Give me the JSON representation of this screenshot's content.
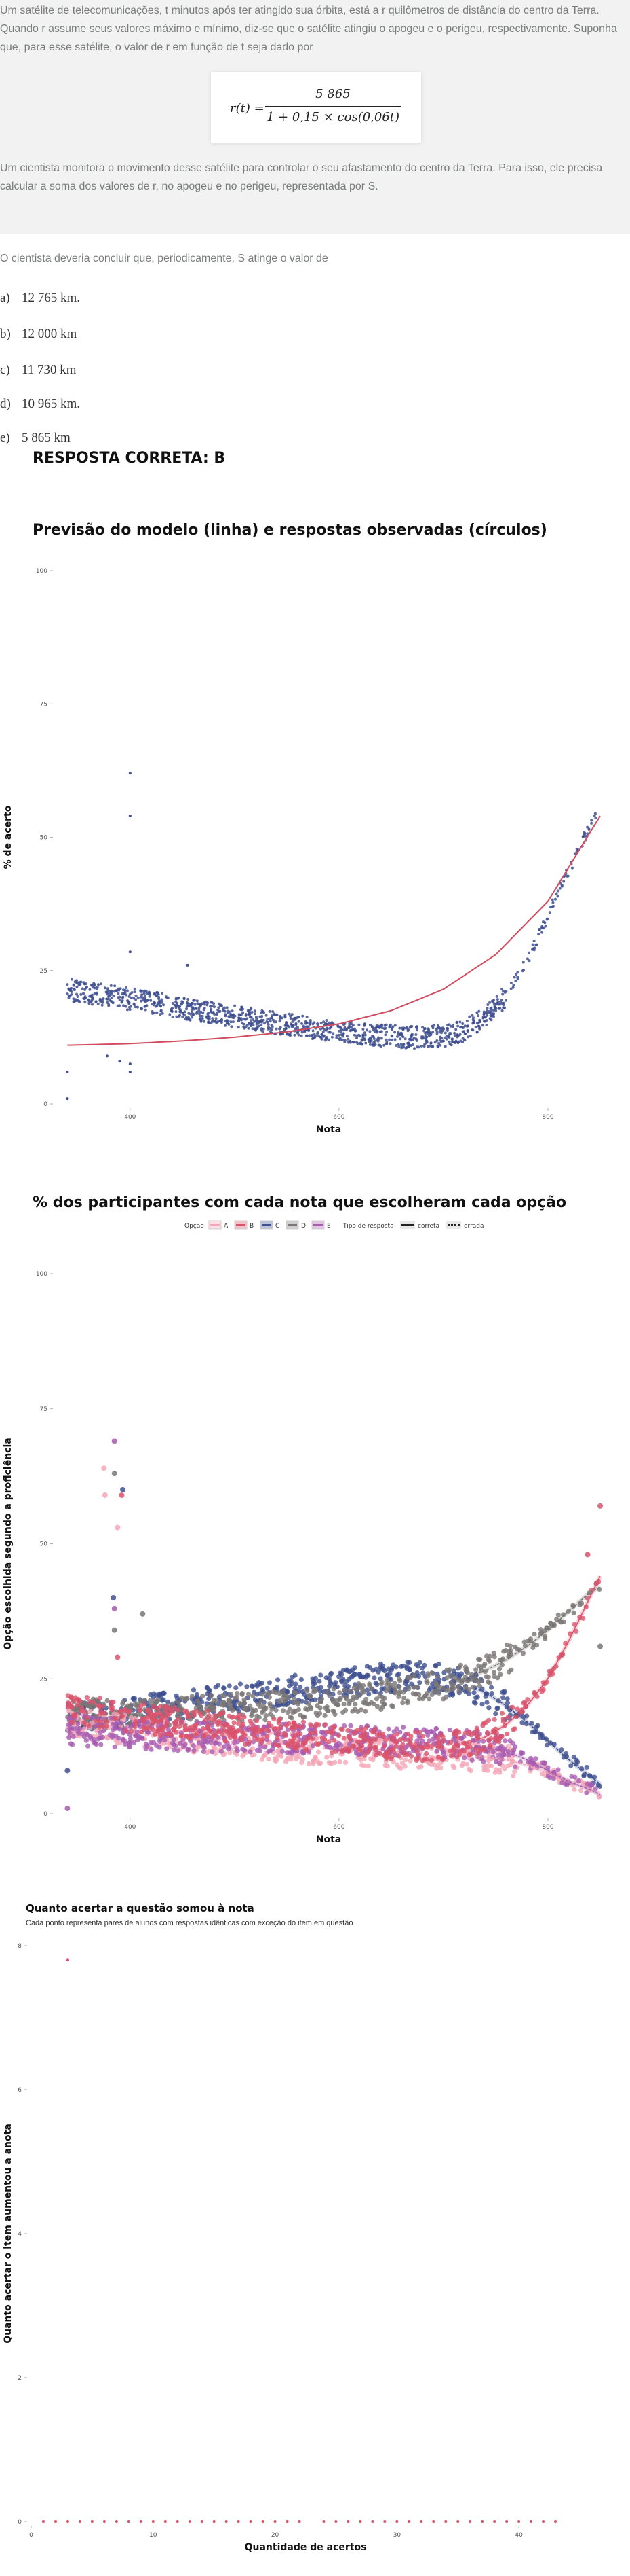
{
  "question": {
    "paragraph1": "Um satélite de telecomunicações, t minutos após ter atingido sua órbita, está a r quilômetros de distância do centro da Terra. Quando r assume seus valores máximo e mínimo, diz-se que o satélite atingiu o apogeu e o perigeu, respectivamente. Suponha que, para esse satélite, o valor de r em função de t seja dado por",
    "formula": {
      "lhs": "r(t) =",
      "numerator": "5 865",
      "denominator": "1 + 0,15 × cos(0,06t)"
    },
    "paragraph2": "Um cientista monitora o movimento desse satélite para controlar o seu afastamento do centro da Terra. Para isso, ele precisa calcular a soma dos valores de r, no apogeu e no perigeu, representada por S.",
    "prompt": "O cientista deveria concluir que, periodicamente, S atinge o valor de",
    "options": [
      {
        "letter": "a)",
        "text": "12 765 km."
      },
      {
        "letter": "b)",
        "text": "12 000 km"
      },
      {
        "letter": "c)",
        "text": "11 730 km"
      },
      {
        "letter": "d)",
        "text": "10 965 km."
      },
      {
        "letter": "e)",
        "text": "5 865 km"
      }
    ],
    "answer": "RESPOSTA CORRETA: B"
  },
  "colors": {
    "A": "#f4a6b7",
    "B": "#d9536b",
    "C": "#3e4f8f",
    "D": "#7a7676",
    "E": "#a85bb0",
    "model_line": "#d24a5e",
    "observed": "#3e4f8f",
    "axis_text": "#555555",
    "gray_box": "#f1f2f1"
  },
  "chart_data": [
    {
      "type": "scatter",
      "title": "Previsão do modelo (linha) e respostas observadas (círculos)",
      "xlabel": "Nota",
      "ylabel": "% de acerto",
      "xlim": [
        330,
        850
      ],
      "ylim": [
        0,
        100
      ],
      "x_ticks": [
        400,
        600,
        800
      ],
      "y_ticks": [
        0,
        25,
        50,
        75,
        100
      ],
      "grid": false,
      "series": [
        {
          "style": "line",
          "x": [
            340,
            400,
            450,
            500,
            550,
            600,
            650,
            700,
            750,
            800,
            850
          ],
          "y": [
            11,
            11.3,
            11.8,
            12.5,
            13.5,
            15,
            17.5,
            21.5,
            28,
            38,
            54
          ]
        },
        {
          "style": "points",
          "x": [
            340,
            350,
            360,
            370,
            380,
            390,
            400,
            410,
            420,
            430,
            440,
            450,
            460,
            470,
            480,
            490,
            500,
            510,
            520,
            530,
            540,
            550,
            560,
            570,
            580,
            590,
            600,
            610,
            620,
            630,
            640,
            650,
            660,
            670,
            680,
            690,
            700,
            710,
            720,
            730,
            740,
            750,
            760,
            770,
            780,
            790,
            800,
            810,
            820,
            830,
            840,
            850
          ],
          "y": [
            21.5,
            21,
            20.8,
            20.5,
            20.2,
            19.9,
            19.6,
            19.3,
            19,
            18.7,
            18.4,
            18,
            17.7,
            17.3,
            17,
            16.7,
            16.4,
            16.1,
            15.8,
            15.5,
            15.2,
            14.9,
            14.6,
            14.3,
            14,
            13.8,
            13.6,
            13.4,
            13.2,
            13,
            12.8,
            12.7,
            12.6,
            12.5,
            12.5,
            12.6,
            12.8,
            13.2,
            13.8,
            14.8,
            16.2,
            18,
            20.5,
            23.5,
            27,
            31,
            35,
            40,
            44,
            48,
            52,
            56
          ]
        }
      ],
      "annotations": [
        {
          "x": 400,
          "y": 62
        },
        {
          "x": 400,
          "y": 54
        },
        {
          "x": 400,
          "y": 28.5
        },
        {
          "x": 400,
          "y": 7.5
        },
        {
          "x": 400,
          "y": 6
        },
        {
          "x": 390,
          "y": 8
        },
        {
          "x": 378,
          "y": 9
        },
        {
          "x": 340,
          "y": 6
        },
        {
          "x": 340,
          "y": 1
        },
        {
          "x": 455,
          "y": 26
        }
      ]
    },
    {
      "type": "scatter",
      "title": "% dos participantes com cada nota que escolheram cada opção",
      "xlabel": "Nota",
      "ylabel": "Opção escolhida segundo a proficiência",
      "xlim": [
        330,
        850
      ],
      "ylim": [
        0,
        100
      ],
      "x_ticks": [
        400,
        600,
        800
      ],
      "y_ticks": [
        0,
        25,
        50,
        75,
        100
      ],
      "grid": false,
      "legend": {
        "placement": "top",
        "option_title": "Opção",
        "options": [
          "A",
          "B",
          "C",
          "D",
          "E"
        ],
        "type_title": "Tipo de resposta",
        "types": [
          "correta",
          "errada"
        ]
      },
      "x": [
        340,
        360,
        380,
        400,
        420,
        440,
        460,
        480,
        500,
        520,
        540,
        560,
        580,
        600,
        620,
        640,
        660,
        680,
        700,
        720,
        740,
        760,
        780,
        800,
        820,
        840,
        850
      ],
      "series": [
        {
          "name": "A",
          "values": [
            17,
            16.5,
            16,
            15.5,
            15,
            14.5,
            14,
            13.5,
            13,
            12.6,
            12.3,
            12,
            11.8,
            11.5,
            11.3,
            11.2,
            11,
            10.9,
            10.8,
            10.7,
            10.5,
            10,
            9,
            7.5,
            6,
            4.5,
            3.8
          ]
        },
        {
          "name": "B",
          "values": [
            19.5,
            19,
            18.5,
            18,
            17.5,
            17,
            16.6,
            16.2,
            15.8,
            15.4,
            15,
            14.6,
            14.2,
            13.8,
            13.4,
            13,
            12.7,
            12.5,
            12.5,
            13,
            14.2,
            16.5,
            20,
            25,
            32,
            40,
            44
          ]
        },
        {
          "name": "C",
          "values": [
            18,
            18.3,
            18.6,
            19,
            19.5,
            20,
            20.5,
            21,
            21.5,
            22,
            22.5,
            23,
            23.5,
            24,
            24.5,
            25,
            25.3,
            25.5,
            25,
            24,
            22.5,
            20,
            17,
            13.5,
            10,
            7,
            5.5
          ]
        },
        {
          "name": "D",
          "values": [
            18.5,
            18.5,
            18.6,
            18.7,
            18.8,
            19,
            19.2,
            19.4,
            19.6,
            19.8,
            20,
            20.3,
            20.6,
            21,
            21.5,
            22,
            22.6,
            23.3,
            24,
            25,
            26.5,
            28.5,
            31,
            34,
            37.5,
            41,
            42
          ]
        },
        {
          "name": "E",
          "values": [
            15.5,
            15.3,
            15,
            14.8,
            14.6,
            14.5,
            14.3,
            14.2,
            14.1,
            14,
            14,
            13.9,
            13.8,
            13.7,
            13.6,
            13.5,
            13.4,
            13.2,
            13,
            12.8,
            12.3,
            11.5,
            10,
            8,
            6,
            4.5,
            3.5
          ]
        }
      ],
      "outliers": [
        {
          "option": "E",
          "x": 385,
          "y": 69
        },
        {
          "option": "A",
          "x": 375,
          "y": 64
        },
        {
          "option": "D",
          "x": 385,
          "y": 63
        },
        {
          "option": "C",
          "x": 393,
          "y": 60
        },
        {
          "option": "A",
          "x": 376,
          "y": 59
        },
        {
          "option": "B",
          "x": 392,
          "y": 59
        },
        {
          "option": "A",
          "x": 388,
          "y": 53
        },
        {
          "option": "C",
          "x": 384,
          "y": 40
        },
        {
          "option": "E",
          "x": 385,
          "y": 38
        },
        {
          "option": "D",
          "x": 412,
          "y": 37
        },
        {
          "option": "D",
          "x": 385,
          "y": 34
        },
        {
          "option": "B",
          "x": 388,
          "y": 29
        },
        {
          "option": "E",
          "x": 340,
          "y": 1
        },
        {
          "option": "C",
          "x": 340,
          "y": 8
        },
        {
          "option": "B",
          "x": 850,
          "y": 57
        },
        {
          "option": "D",
          "x": 850,
          "y": 31
        },
        {
          "option": "B",
          "x": 838,
          "y": 48
        }
      ]
    },
    {
      "type": "scatter",
      "title": "Quanto acertar a questão somou à nota",
      "subtitle": "Cada ponto representa pares de alunos com respostas idênticas com exceção do item em questão",
      "xlabel": "Quantidade de acertos",
      "ylabel": "Quanto acertar o item aumentou a anota",
      "xlim": [
        0,
        45
      ],
      "ylim": [
        0,
        8
      ],
      "x_ticks": [
        0,
        10,
        20,
        30,
        40
      ],
      "y_ticks": [
        0,
        2,
        4,
        6,
        8
      ],
      "grid": false,
      "x": [
        1,
        2,
        3,
        4,
        5,
        6,
        7,
        8,
        9,
        10,
        11,
        12,
        13,
        14,
        15,
        16,
        17,
        18,
        19,
        20,
        21,
        22,
        24,
        25,
        26,
        27,
        28,
        29,
        30,
        31,
        32,
        33,
        34,
        35,
        36,
        37,
        38,
        39,
        40,
        41,
        42,
        43
      ],
      "y": [
        0,
        0,
        0,
        0,
        0,
        0,
        0,
        0,
        0,
        0,
        0,
        0,
        0,
        0,
        0,
        0,
        0,
        0,
        0,
        0,
        0,
        0,
        0,
        0,
        0,
        0,
        0,
        0,
        0,
        0,
        0,
        0,
        0,
        0,
        0,
        0,
        0,
        0,
        0,
        0,
        0,
        0
      ],
      "outliers": [
        {
          "x": 3,
          "y": 7.8
        }
      ]
    }
  ]
}
